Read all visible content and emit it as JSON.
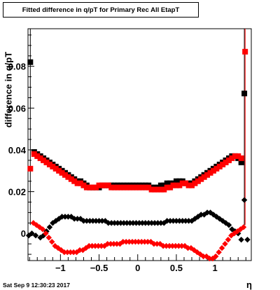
{
  "chart_data": {
    "type": "scatter",
    "title": "Fitted difference in q/pT for Primary Rec All EtapT",
    "xlabel": "η",
    "ylabel": "difference in q/pT",
    "xlim": [
      -1.42,
      1.47
    ],
    "ylim": [
      -0.013,
      0.098
    ],
    "x_ticks": [
      "−1",
      "−0.5",
      "0",
      "0.5",
      "1"
    ],
    "y_ticks": [
      "0",
      "0.02",
      "0.04",
      "0.06",
      "0.08"
    ],
    "series": [
      {
        "color": "#000000",
        "marker": "square",
        "points": [
          [
            -1.39,
            0.082
          ],
          [
            -1.34,
            0.039
          ],
          [
            -1.3,
            0.038
          ],
          [
            -1.26,
            0.037
          ],
          [
            -1.22,
            0.036
          ],
          [
            -1.18,
            0.035
          ],
          [
            -1.14,
            0.034
          ],
          [
            -1.1,
            0.033
          ],
          [
            -1.06,
            0.032
          ],
          [
            -1.02,
            0.031
          ],
          [
            -0.98,
            0.03
          ],
          [
            -0.94,
            0.029
          ],
          [
            -0.9,
            0.028
          ],
          [
            -0.86,
            0.027
          ],
          [
            -0.82,
            0.026
          ],
          [
            -0.78,
            0.025
          ],
          [
            -0.74,
            0.025
          ],
          [
            -0.7,
            0.024
          ],
          [
            -0.66,
            0.023
          ],
          [
            -0.62,
            0.022
          ],
          [
            -0.58,
            0.022
          ],
          [
            -0.54,
            0.022
          ],
          [
            -0.5,
            0.022
          ],
          [
            -0.46,
            0.023
          ],
          [
            -0.42,
            0.023
          ],
          [
            -0.38,
            0.023
          ],
          [
            -0.34,
            0.023
          ],
          [
            -0.3,
            0.023
          ],
          [
            -0.26,
            0.023
          ],
          [
            -0.22,
            0.023
          ],
          [
            -0.18,
            0.023
          ],
          [
            -0.14,
            0.023
          ],
          [
            -0.1,
            0.023
          ],
          [
            -0.06,
            0.023
          ],
          [
            -0.02,
            0.023
          ],
          [
            0.02,
            0.023
          ],
          [
            0.06,
            0.023
          ],
          [
            0.1,
            0.023
          ],
          [
            0.14,
            0.023
          ],
          [
            0.18,
            0.022
          ],
          [
            0.22,
            0.022
          ],
          [
            0.26,
            0.022
          ],
          [
            0.3,
            0.023
          ],
          [
            0.34,
            0.023
          ],
          [
            0.38,
            0.024
          ],
          [
            0.42,
            0.024
          ],
          [
            0.46,
            0.024
          ],
          [
            0.5,
            0.025
          ],
          [
            0.54,
            0.025
          ],
          [
            0.58,
            0.025
          ],
          [
            0.62,
            0.024
          ],
          [
            0.66,
            0.024
          ],
          [
            0.7,
            0.024
          ],
          [
            0.74,
            0.025
          ],
          [
            0.78,
            0.026
          ],
          [
            0.82,
            0.027
          ],
          [
            0.86,
            0.028
          ],
          [
            0.9,
            0.029
          ],
          [
            0.94,
            0.03
          ],
          [
            0.98,
            0.031
          ],
          [
            1.02,
            0.032
          ],
          [
            1.06,
            0.033
          ],
          [
            1.1,
            0.034
          ],
          [
            1.14,
            0.035
          ],
          [
            1.18,
            0.036
          ],
          [
            1.22,
            0.037
          ],
          [
            1.26,
            0.037
          ],
          [
            1.3,
            0.036
          ],
          [
            1.34,
            0.034
          ],
          [
            1.38,
            0.067
          ]
        ]
      },
      {
        "color": "#ff0000",
        "marker": "square",
        "points": [
          [
            -1.39,
            0.031
          ],
          [
            -1.34,
            0.038
          ],
          [
            -1.3,
            0.037
          ],
          [
            -1.26,
            0.036
          ],
          [
            -1.22,
            0.035
          ],
          [
            -1.18,
            0.034
          ],
          [
            -1.14,
            0.033
          ],
          [
            -1.1,
            0.032
          ],
          [
            -1.06,
            0.031
          ],
          [
            -1.02,
            0.03
          ],
          [
            -0.98,
            0.029
          ],
          [
            -0.94,
            0.028
          ],
          [
            -0.9,
            0.027
          ],
          [
            -0.86,
            0.026
          ],
          [
            -0.82,
            0.025
          ],
          [
            -0.78,
            0.024
          ],
          [
            -0.74,
            0.024
          ],
          [
            -0.7,
            0.023
          ],
          [
            -0.66,
            0.022
          ],
          [
            -0.62,
            0.022
          ],
          [
            -0.58,
            0.022
          ],
          [
            -0.54,
            0.022
          ],
          [
            -0.5,
            0.023
          ],
          [
            -0.46,
            0.023
          ],
          [
            -0.42,
            0.023
          ],
          [
            -0.38,
            0.023
          ],
          [
            -0.34,
            0.022
          ],
          [
            -0.3,
            0.022
          ],
          [
            -0.26,
            0.022
          ],
          [
            -0.22,
            0.022
          ],
          [
            -0.18,
            0.022
          ],
          [
            -0.14,
            0.022
          ],
          [
            -0.1,
            0.022
          ],
          [
            -0.06,
            0.022
          ],
          [
            -0.02,
            0.022
          ],
          [
            0.02,
            0.022
          ],
          [
            0.06,
            0.022
          ],
          [
            0.1,
            0.022
          ],
          [
            0.14,
            0.022
          ],
          [
            0.18,
            0.021
          ],
          [
            0.22,
            0.021
          ],
          [
            0.26,
            0.021
          ],
          [
            0.3,
            0.021
          ],
          [
            0.34,
            0.021
          ],
          [
            0.38,
            0.022
          ],
          [
            0.42,
            0.022
          ],
          [
            0.46,
            0.023
          ],
          [
            0.5,
            0.023
          ],
          [
            0.54,
            0.023
          ],
          [
            0.58,
            0.024
          ],
          [
            0.62,
            0.024
          ],
          [
            0.66,
            0.023
          ],
          [
            0.7,
            0.023
          ],
          [
            0.74,
            0.024
          ],
          [
            0.78,
            0.025
          ],
          [
            0.82,
            0.026
          ],
          [
            0.86,
            0.027
          ],
          [
            0.9,
            0.028
          ],
          [
            0.94,
            0.029
          ],
          [
            0.98,
            0.03
          ],
          [
            1.02,
            0.031
          ],
          [
            1.06,
            0.032
          ],
          [
            1.1,
            0.033
          ],
          [
            1.14,
            0.034
          ],
          [
            1.18,
            0.035
          ],
          [
            1.22,
            0.036
          ],
          [
            1.26,
            0.037
          ],
          [
            1.3,
            0.037
          ],
          [
            1.34,
            0.036
          ],
          [
            1.39,
            0.087
          ]
        ]
      },
      {
        "color": "#000000",
        "marker": "diamond",
        "points": [
          [
            -1.41,
            -0.001
          ],
          [
            -1.37,
            0.0
          ],
          [
            -1.32,
            -0.001
          ],
          [
            -1.26,
            -0.002
          ],
          [
            -1.22,
            -0.001
          ],
          [
            -1.18,
            0.001
          ],
          [
            -1.14,
            0.003
          ],
          [
            -1.1,
            0.005
          ],
          [
            -1.06,
            0.006
          ],
          [
            -1.02,
            0.007
          ],
          [
            -0.98,
            0.008
          ],
          [
            -0.94,
            0.008
          ],
          [
            -0.9,
            0.008
          ],
          [
            -0.86,
            0.008
          ],
          [
            -0.82,
            0.007
          ],
          [
            -0.78,
            0.007
          ],
          [
            -0.74,
            0.007
          ],
          [
            -0.7,
            0.006
          ],
          [
            -0.66,
            0.006
          ],
          [
            -0.62,
            0.006
          ],
          [
            -0.58,
            0.006
          ],
          [
            -0.54,
            0.006
          ],
          [
            -0.5,
            0.006
          ],
          [
            -0.46,
            0.006
          ],
          [
            -0.42,
            0.006
          ],
          [
            -0.38,
            0.005
          ],
          [
            -0.34,
            0.005
          ],
          [
            -0.3,
            0.005
          ],
          [
            -0.26,
            0.005
          ],
          [
            -0.22,
            0.005
          ],
          [
            -0.18,
            0.005
          ],
          [
            -0.14,
            0.005
          ],
          [
            -0.1,
            0.005
          ],
          [
            -0.06,
            0.005
          ],
          [
            -0.02,
            0.005
          ],
          [
            0.02,
            0.005
          ],
          [
            0.06,
            0.005
          ],
          [
            0.1,
            0.005
          ],
          [
            0.14,
            0.005
          ],
          [
            0.18,
            0.005
          ],
          [
            0.22,
            0.005
          ],
          [
            0.26,
            0.005
          ],
          [
            0.3,
            0.005
          ],
          [
            0.34,
            0.005
          ],
          [
            0.38,
            0.006
          ],
          [
            0.42,
            0.006
          ],
          [
            0.46,
            0.006
          ],
          [
            0.5,
            0.006
          ],
          [
            0.54,
            0.006
          ],
          [
            0.58,
            0.006
          ],
          [
            0.62,
            0.006
          ],
          [
            0.66,
            0.006
          ],
          [
            0.7,
            0.006
          ],
          [
            0.74,
            0.007
          ],
          [
            0.78,
            0.008
          ],
          [
            0.82,
            0.009
          ],
          [
            0.86,
            0.009
          ],
          [
            0.9,
            0.01
          ],
          [
            0.94,
            0.01
          ],
          [
            0.98,
            0.009
          ],
          [
            1.02,
            0.008
          ],
          [
            1.06,
            0.007
          ],
          [
            1.1,
            0.006
          ],
          [
            1.14,
            0.005
          ],
          [
            1.18,
            0.004
          ],
          [
            1.22,
            0.002
          ],
          [
            1.26,
            0.001
          ],
          [
            1.3,
            0.0
          ],
          [
            1.34,
            -0.003
          ],
          [
            1.38,
            0.016
          ],
          [
            1.42,
            -0.003
          ]
        ]
      },
      {
        "color": "#ff0000",
        "marker": "diamond",
        "points": [
          [
            -1.35,
            0.005
          ],
          [
            -1.31,
            0.004
          ],
          [
            -1.27,
            0.003
          ],
          [
            -1.23,
            0.002
          ],
          [
            -1.19,
            0.0
          ],
          [
            -1.15,
            -0.002
          ],
          [
            -1.11,
            -0.004
          ],
          [
            -1.07,
            -0.006
          ],
          [
            -1.03,
            -0.007
          ],
          [
            -0.99,
            -0.008
          ],
          [
            -0.95,
            -0.009
          ],
          [
            -0.91,
            -0.009
          ],
          [
            -0.87,
            -0.009
          ],
          [
            -0.83,
            -0.009
          ],
          [
            -0.79,
            -0.009
          ],
          [
            -0.75,
            -0.008
          ],
          [
            -0.71,
            -0.008
          ],
          [
            -0.67,
            -0.007
          ],
          [
            -0.63,
            -0.006
          ],
          [
            -0.59,
            -0.006
          ],
          [
            -0.55,
            -0.006
          ],
          [
            -0.51,
            -0.006
          ],
          [
            -0.47,
            -0.006
          ],
          [
            -0.43,
            -0.006
          ],
          [
            -0.39,
            -0.005
          ],
          [
            -0.35,
            -0.005
          ],
          [
            -0.31,
            -0.005
          ],
          [
            -0.27,
            -0.005
          ],
          [
            -0.23,
            -0.005
          ],
          [
            -0.19,
            -0.004
          ],
          [
            -0.15,
            -0.004
          ],
          [
            -0.11,
            -0.004
          ],
          [
            -0.07,
            -0.004
          ],
          [
            -0.03,
            -0.004
          ],
          [
            0.01,
            -0.004
          ],
          [
            0.05,
            -0.004
          ],
          [
            0.09,
            -0.004
          ],
          [
            0.13,
            -0.004
          ],
          [
            0.17,
            -0.004
          ],
          [
            0.21,
            -0.005
          ],
          [
            0.25,
            -0.005
          ],
          [
            0.29,
            -0.005
          ],
          [
            0.33,
            -0.006
          ],
          [
            0.37,
            -0.006
          ],
          [
            0.41,
            -0.006
          ],
          [
            0.45,
            -0.006
          ],
          [
            0.49,
            -0.006
          ],
          [
            0.53,
            -0.006
          ],
          [
            0.57,
            -0.006
          ],
          [
            0.61,
            -0.006
          ],
          [
            0.65,
            -0.007
          ],
          [
            0.69,
            -0.007
          ],
          [
            0.73,
            -0.008
          ],
          [
            0.77,
            -0.009
          ],
          [
            0.81,
            -0.01
          ],
          [
            0.85,
            -0.011
          ],
          [
            0.89,
            -0.011
          ],
          [
            0.93,
            -0.012
          ],
          [
            0.97,
            -0.012
          ],
          [
            1.01,
            -0.011
          ],
          [
            1.05,
            -0.009
          ],
          [
            1.09,
            -0.007
          ],
          [
            1.13,
            -0.005
          ],
          [
            1.17,
            -0.003
          ],
          [
            1.21,
            -0.001
          ],
          [
            1.25,
            0.0
          ],
          [
            1.29,
            0.001
          ],
          [
            1.33,
            0.002
          ],
          [
            1.37,
            0.003
          ]
        ]
      }
    ],
    "grid": false,
    "legend": "none"
  },
  "footer": "Sat Sep  9 12:30:23 2017"
}
